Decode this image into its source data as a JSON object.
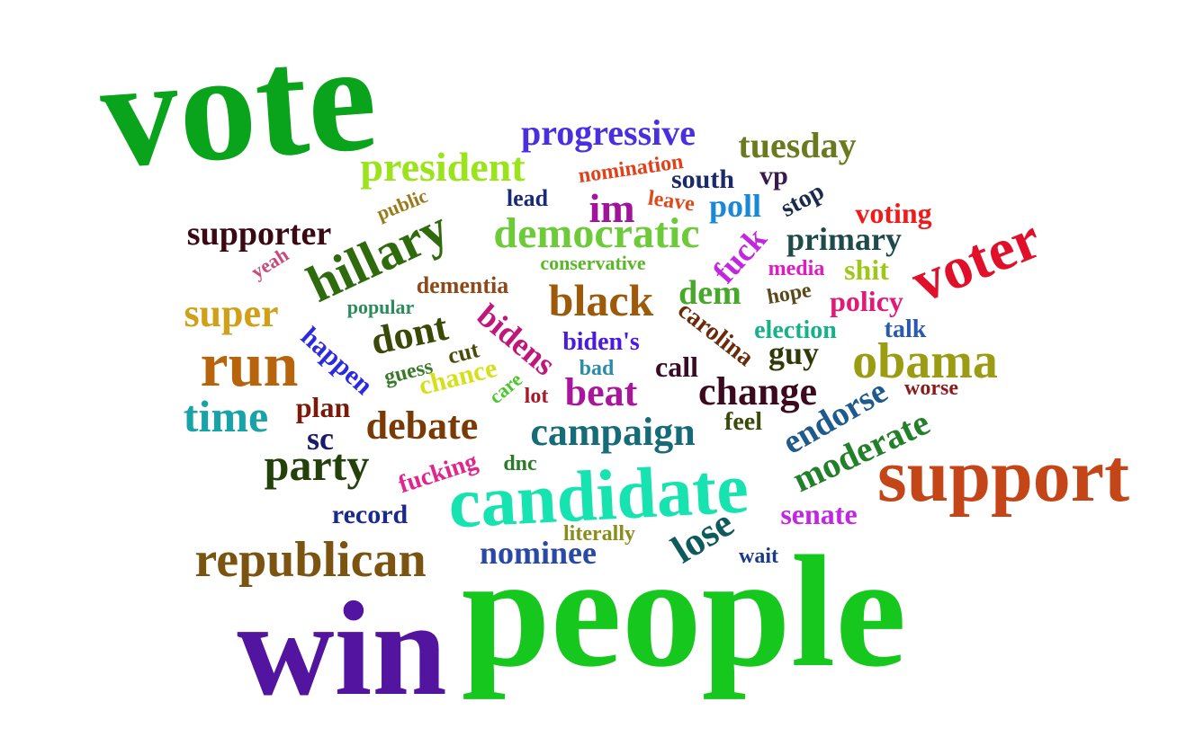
{
  "words": [
    {
      "text": "vote",
      "color": "#0aa31c"
    },
    {
      "text": "people",
      "color": "#16c81e"
    },
    {
      "text": "win",
      "color": "#5314a0"
    },
    {
      "text": "support",
      "color": "#c44518"
    },
    {
      "text": "candidate",
      "color": "#17e3b0"
    },
    {
      "text": "voter",
      "color": "#e0102a"
    },
    {
      "text": "obama",
      "color": "#9c9c14"
    },
    {
      "text": "republican",
      "color": "#7a5410"
    },
    {
      "text": "run",
      "color": "#b8640c"
    },
    {
      "text": "hillary",
      "color": "#2f6b0c"
    },
    {
      "text": "democratic",
      "color": "#6dcb3a"
    },
    {
      "text": "president",
      "color": "#9be31c"
    },
    {
      "text": "black",
      "color": "#9c5a0a"
    },
    {
      "text": "party",
      "color": "#24410b"
    },
    {
      "text": "time",
      "color": "#17a3a8"
    },
    {
      "text": "change",
      "color": "#3b0a1e"
    },
    {
      "text": "campaign",
      "color": "#156b78"
    },
    {
      "text": "debate",
      "color": "#7a3a06"
    },
    {
      "text": "progressive",
      "color": "#4a2fe0"
    },
    {
      "text": "tuesday",
      "color": "#6b7a1e"
    },
    {
      "text": "lose",
      "color": "#0f5a5a"
    },
    {
      "text": "moderate",
      "color": "#23802a"
    },
    {
      "text": "endorse",
      "color": "#1e5a8c"
    },
    {
      "text": "super",
      "color": "#d0a018"
    },
    {
      "text": "supporter",
      "color": "#3a0a14"
    },
    {
      "text": "dont",
      "color": "#3a4a06"
    },
    {
      "text": "beat",
      "color": "#a8169c"
    },
    {
      "text": "nominee",
      "color": "#2a48a8"
    },
    {
      "text": "primary",
      "color": "#1e4a4a"
    },
    {
      "text": "im",
      "color": "#a0149c"
    },
    {
      "text": "bidens",
      "color": "#c0167a"
    },
    {
      "text": "dem",
      "color": "#47a829"
    },
    {
      "text": "fuck",
      "color": "#c326e0"
    },
    {
      "text": "poll",
      "color": "#1a88d9"
    },
    {
      "text": "guy",
      "color": "#2f3a0a"
    },
    {
      "text": "shit",
      "color": "#9ec71a"
    },
    {
      "text": "policy",
      "color": "#e01a78"
    },
    {
      "text": "senate",
      "color": "#c326e0"
    },
    {
      "text": "voting",
      "color": "#f01a1a"
    },
    {
      "text": "happen",
      "color": "#2a2ae0"
    },
    {
      "text": "call",
      "color": "#3a0a26"
    },
    {
      "text": "plan",
      "color": "#7a1a0a"
    },
    {
      "text": "sc",
      "color": "#1a1a6b"
    },
    {
      "text": "record",
      "color": "#1a2a8c"
    },
    {
      "text": "chance",
      "color": "#d6e01a"
    },
    {
      "text": "fucking",
      "color": "#e0268c"
    },
    {
      "text": "carolina",
      "color": "#6b2a0a"
    },
    {
      "text": "south",
      "color": "#1a2a6b"
    },
    {
      "text": "vp",
      "color": "#3a1a4a"
    },
    {
      "text": "stop",
      "color": "#1a2a4a"
    },
    {
      "text": "election",
      "color": "#18b08c"
    },
    {
      "text": "talk",
      "color": "#2a5ab0"
    },
    {
      "text": "biden's",
      "color": "#4a1ae0"
    },
    {
      "text": "dementia",
      "color": "#8c4a1a"
    },
    {
      "text": "guess",
      "color": "#3a7a2a"
    },
    {
      "text": "cut",
      "color": "#4a4a0a"
    },
    {
      "text": "feel",
      "color": "#3a4a0a"
    },
    {
      "text": "nomination",
      "color": "#e0401a"
    },
    {
      "text": "lead",
      "color": "#1a2a7a"
    },
    {
      "text": "leave",
      "color": "#e04a1a"
    },
    {
      "text": "yeah",
      "color": "#c84a7a"
    },
    {
      "text": "public",
      "color": "#9a7a1a"
    },
    {
      "text": "conservative",
      "color": "#5ab828"
    },
    {
      "text": "popular",
      "color": "#2a8c5a"
    },
    {
      "text": "media",
      "color": "#e01ac0"
    },
    {
      "text": "hope",
      "color": "#5a4a1a"
    },
    {
      "text": "bad",
      "color": "#2a8ca8"
    },
    {
      "text": "care",
      "color": "#4ac82a"
    },
    {
      "text": "lot",
      "color": "#a81a2a"
    },
    {
      "text": "worse",
      "color": "#8c1a1a"
    },
    {
      "text": "dnc",
      "color": "#2a7a2a"
    },
    {
      "text": "literally",
      "color": "#8c8c1a"
    },
    {
      "text": "wait",
      "color": "#1a3a8c"
    }
  ]
}
